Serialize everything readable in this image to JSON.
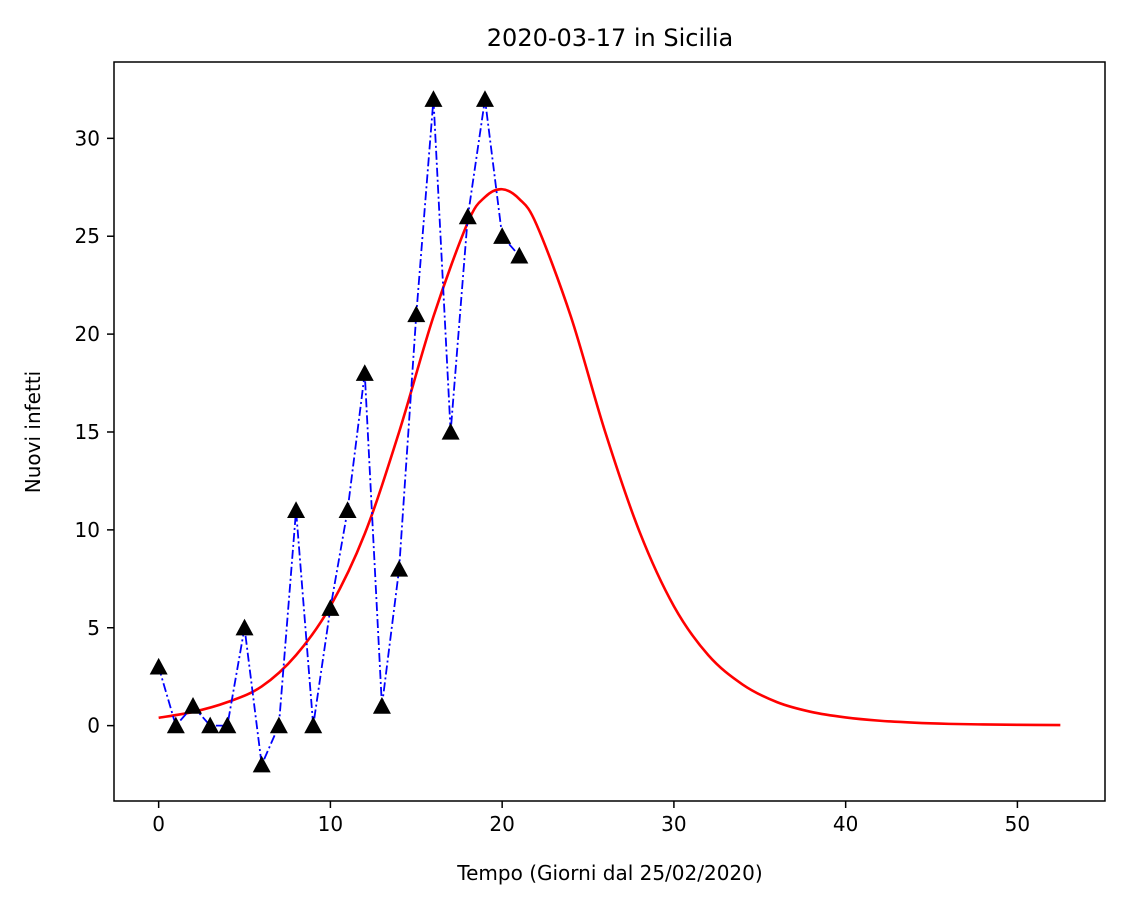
{
  "chart_data": {
    "type": "line",
    "title": "2020-03-17 in Sicilia",
    "xlabel": "Tempo (Giorni dal 25/02/2020)",
    "ylabel": "Nuovi infetti",
    "xlim": [
      -2.6,
      55.1
    ],
    "ylim": [
      -3.85,
      33.9
    ],
    "xticks": [
      0,
      10,
      20,
      30,
      40,
      50
    ],
    "yticks": [
      0,
      5,
      10,
      15,
      20,
      25,
      30
    ],
    "grid": false,
    "series": [
      {
        "kind": "observed",
        "color": "#0000ff",
        "marker": "triangle-up",
        "marker_color": "#000000",
        "line_style": "dash-dot",
        "x": [
          0,
          1,
          2,
          3,
          4,
          5,
          6,
          7,
          8,
          9,
          10,
          11,
          12,
          13,
          14,
          15,
          16,
          17,
          18,
          19,
          20,
          21
        ],
        "y": [
          3,
          0,
          1,
          0,
          0,
          5,
          -2,
          0,
          11,
          0,
          6,
          11,
          18,
          1,
          8,
          21,
          32,
          15,
          26,
          32,
          25,
          24
        ]
      },
      {
        "kind": "fit",
        "color": "#ff0000",
        "line_style": "solid",
        "x": [
          0,
          2,
          4,
          6,
          8,
          10,
          12,
          14,
          16,
          18,
          19,
          20,
          21,
          22,
          24,
          26,
          28,
          30,
          32,
          34,
          36,
          38,
          40,
          42,
          44,
          46,
          48,
          50,
          52.5
        ],
        "y": [
          0.4,
          0.7,
          1.2,
          2.0,
          3.6,
          6.1,
          9.8,
          15.0,
          20.9,
          25.7,
          27.0,
          27.4,
          26.9,
          25.6,
          20.9,
          15.0,
          9.9,
          6.1,
          3.6,
          2.1,
          1.2,
          0.7,
          0.42,
          0.25,
          0.15,
          0.09,
          0.06,
          0.04,
          0.03
        ]
      }
    ]
  }
}
